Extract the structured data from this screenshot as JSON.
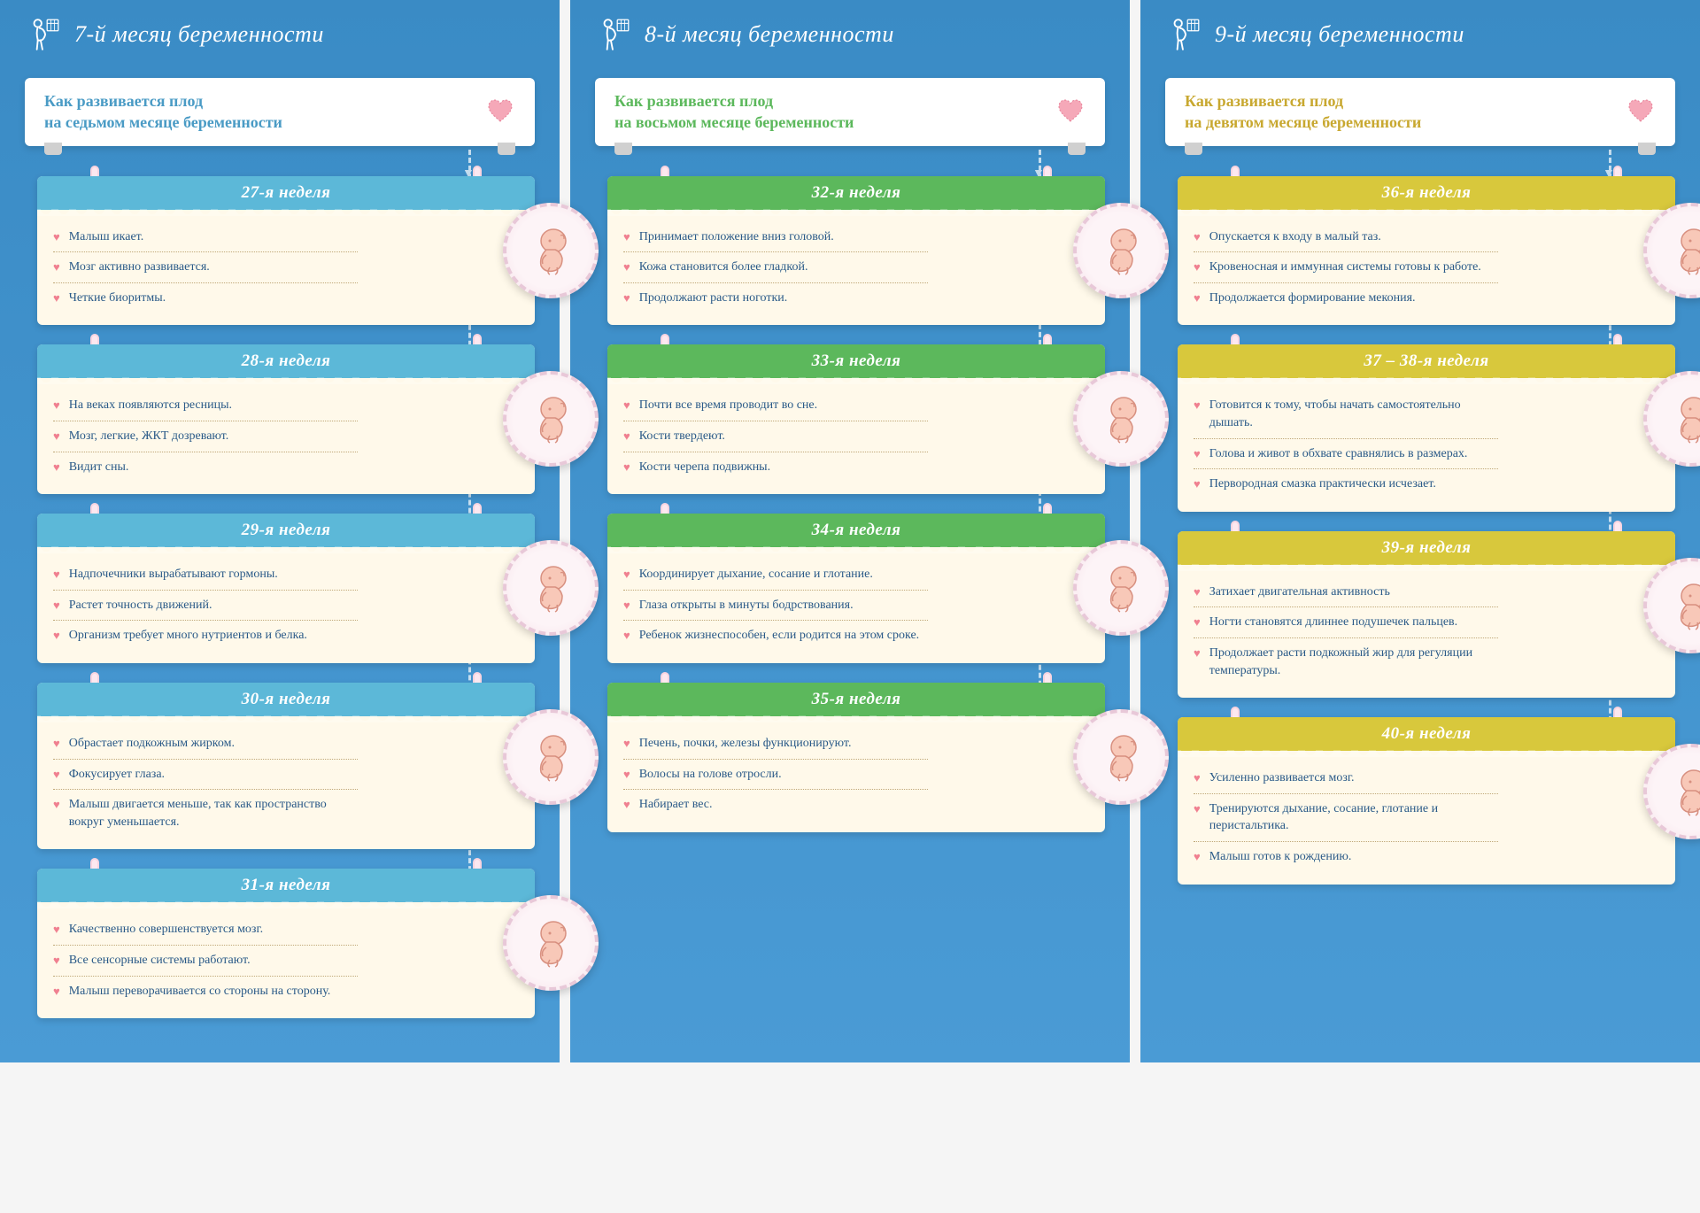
{
  "colors": {
    "panel_bg": "#4a9bd5",
    "card_bg": "#fff9ea",
    "text": "#2a5a88",
    "bullet": "#f08090",
    "fetus_skin": "#f8c8b8",
    "fetus_outline": "#d89080",
    "circle_bg": "#fdf4f7",
    "circle_border": "#e8c8d8",
    "heart_fill": "#f5a8b8",
    "heart_stroke": "#e88098"
  },
  "fonts": {
    "title_size": 26,
    "subtitle_size": 18,
    "week_header_size": 19,
    "item_size": 14
  },
  "months": [
    {
      "title": "7-й месяц беременности",
      "subtitle_line1": "Как развивается плод",
      "subtitle_line2": "на седьмом месяце беременности",
      "theme": "blue",
      "header_color": "#5cb8d8",
      "subtitle_color": "#4a9bc5",
      "weeks": [
        {
          "label": "27-я неделя",
          "items": [
            "Малыш икает.",
            "Мозг активно развивается.",
            "Четкие биоритмы."
          ]
        },
        {
          "label": "28-я неделя",
          "items": [
            "На веках появляются ресницы.",
            "Мозг, легкие, ЖКТ дозревают.",
            "Видит сны."
          ]
        },
        {
          "label": "29-я неделя",
          "items": [
            "Надпочечники вырабатывают гормоны.",
            "Растет точность движений.",
            "Организм требует много нутриентов и белка."
          ]
        },
        {
          "label": "30-я неделя",
          "items": [
            "Обрастает подкожным жирком.",
            "Фокусирует глаза.",
            "Малыш двигается меньше, так как пространство вокруг уменьшается."
          ]
        },
        {
          "label": "31-я неделя",
          "items": [
            "Качественно совершенствуется мозг.",
            "Все сенсорные системы работают.",
            "Малыш переворачивается со стороны на сторону."
          ]
        }
      ]
    },
    {
      "title": "8-й месяц беременности",
      "subtitle_line1": "Как развивается плод",
      "subtitle_line2": "на восьмом месяце беременности",
      "theme": "green",
      "header_color": "#5cb85c",
      "subtitle_color": "#5cb85c",
      "weeks": [
        {
          "label": "32-я неделя",
          "items": [
            "Принимает положение вниз головой.",
            "Кожа становится более гладкой.",
            "Продолжают расти ноготки."
          ]
        },
        {
          "label": "33-я неделя",
          "items": [
            "Почти все время проводит во сне.",
            "Кости твердеют.",
            "Кости черепа подвижны."
          ]
        },
        {
          "label": "34-я неделя",
          "items": [
            "Координирует дыхание, сосание и глотание.",
            "Глаза открыты в минуты бодрствования.",
            "Ребенок жизнеспособен, если родится на этом сроке."
          ]
        },
        {
          "label": "35-я неделя",
          "items": [
            "Печень, почки, железы функционируют.",
            "Волосы на голове отросли.",
            "Набирает вес."
          ]
        }
      ]
    },
    {
      "title": "9-й месяц беременности",
      "subtitle_line1": "Как развивается плод",
      "subtitle_line2": "на девятом месяце беременности",
      "theme": "yellow",
      "header_color": "#d8c83c",
      "subtitle_color": "#c8a830",
      "weeks": [
        {
          "label": "36-я неделя",
          "items": [
            "Опускается к входу в малый таз.",
            "Кровеносная и иммунная системы готовы к работе.",
            "Продолжается формирование мекония."
          ]
        },
        {
          "label": "37 – 38-я неделя",
          "items": [
            "Готовится к тому, чтобы начать самостоятельно дышать.",
            "Голова и живот в обхвате сравнялись в размерах.",
            "Первородная смазка практически исчезает."
          ]
        },
        {
          "label": "39-я неделя",
          "items": [
            "Затихает двигательная активность",
            "Ногти становятся длиннее подушечек пальцев.",
            "Продолжает расти подкожный жир для регуляции температуры."
          ]
        },
        {
          "label": "40-я неделя",
          "items": [
            "Усиленно развивается мозг.",
            "Тренируются дыхание, сосание, глотание и перистальтика.",
            "Малыш готов к рождению."
          ]
        }
      ]
    }
  ]
}
